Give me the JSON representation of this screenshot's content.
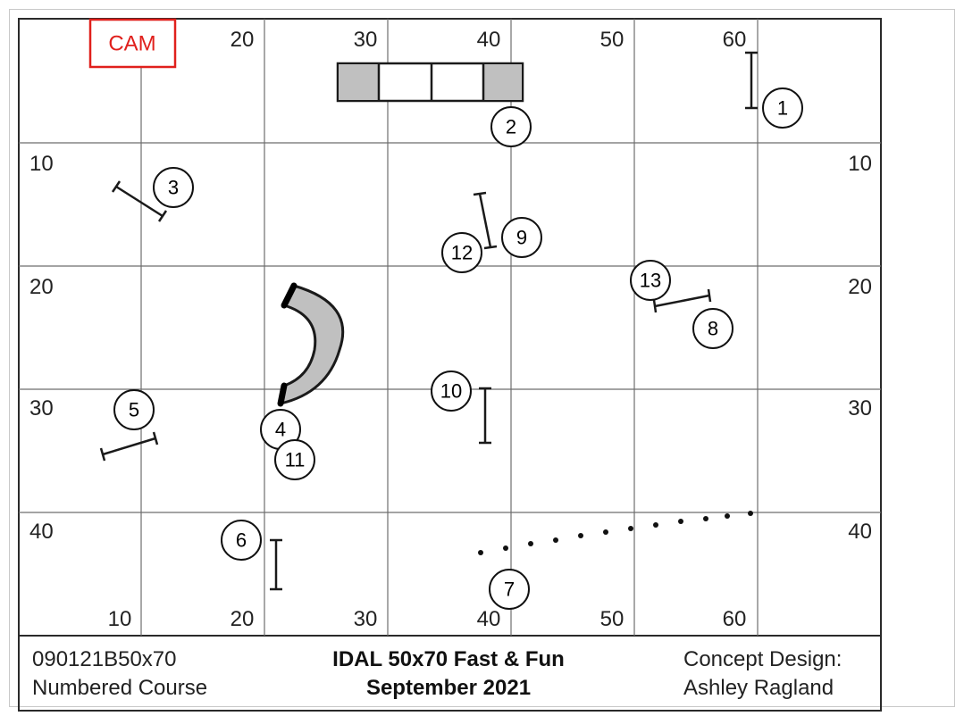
{
  "cam_label": "CAM",
  "top_axis_labels": [
    "20",
    "30",
    "40",
    "50",
    "60"
  ],
  "bottom_axis_labels": [
    "10",
    "20",
    "30",
    "40",
    "50",
    "60"
  ],
  "left_axis_labels": [
    "10",
    "20",
    "30",
    "40"
  ],
  "right_axis_labels": [
    "10",
    "20",
    "30",
    "40"
  ],
  "obstacle_numbers": [
    "1",
    "2",
    "3",
    "4",
    "5",
    "6",
    "7",
    "8",
    "9",
    "10",
    "11",
    "12",
    "13"
  ],
  "footer": {
    "course_code": "090121B50x70",
    "course_type": "Numbered Course",
    "title": "IDAL 50x70 Fast & Fun",
    "date": "September 2021",
    "design_label": "Concept Design:",
    "designer": "Ashley Ragland"
  },
  "colors": {
    "grid": "#6e6e6e",
    "border": "#2a2a2a",
    "equipment_fill": "#c0c0c0",
    "cam": "#e0201c"
  }
}
